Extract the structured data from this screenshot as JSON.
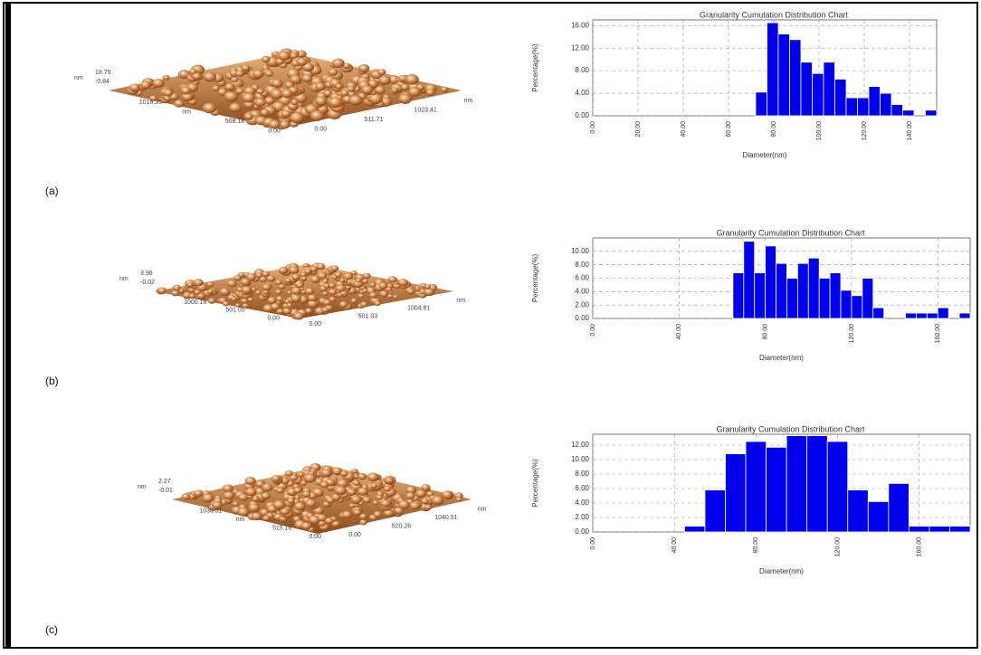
{
  "panels": [
    {
      "label": "(a)",
      "afm_labels": [
        "18.79",
        "nm",
        "-0.84",
        "1016.36",
        "nm",
        "508.18",
        "0.00",
        "0.00",
        "511.71",
        "1023.41",
        "nm"
      ]
    },
    {
      "label": "(b)",
      "afm_labels": [
        "3.96",
        "nm",
        "-0.02",
        "1000.16",
        "501.05",
        "0.00",
        "0.00",
        "501.03",
        "1004.61",
        "nm"
      ]
    },
    {
      "label": "(c)",
      "afm_labels": [
        "2.27",
        "nm",
        "-0.01",
        "1030.31",
        "nm",
        "515.16",
        "0.00",
        "0.00",
        "520.26",
        "1040.51",
        "nm"
      ]
    }
  ],
  "chart_data": [
    {
      "type": "histogram",
      "title": "Granularity Cumulation Distribution  Chart",
      "x_label": "Diameter(nm)",
      "y_label": "Percentage(%)",
      "color": "#0000ee",
      "grid": true,
      "bins": [
        72,
        77,
        82,
        87,
        92,
        97,
        102,
        107,
        112,
        117,
        122,
        127,
        132,
        137,
        142,
        147,
        152
      ],
      "values": [
        4.2,
        16.5,
        14.5,
        13.5,
        9.5,
        7.5,
        9.5,
        6.5,
        3.2,
        3.2,
        5.2,
        4.0,
        2.0,
        1.0,
        0,
        1.0
      ],
      "xlim": [
        0,
        152
      ],
      "ylim": [
        0,
        17
      ],
      "xticks": [
        {
          "value": 0,
          "label": "0.00"
        },
        {
          "value": 20,
          "label": "20.00"
        },
        {
          "value": 40,
          "label": "40.00"
        },
        {
          "value": 60,
          "label": "60.00"
        },
        {
          "value": 80,
          "label": "80.00"
        },
        {
          "value": 100,
          "label": "100.00"
        },
        {
          "value": 120,
          "label": "120.00"
        },
        {
          "value": 140,
          "label": "140.00"
        }
      ],
      "yticks": [
        {
          "value": 0,
          "label": "0.00"
        },
        {
          "value": 4,
          "label": "4.00"
        },
        {
          "value": 8,
          "label": "8.00"
        },
        {
          "value": 12,
          "label": "12.00"
        },
        {
          "value": 16,
          "label": "16.00"
        }
      ]
    },
    {
      "type": "histogram",
      "title": "Granularity Cumulation Distribution  Chart",
      "x_label": "Diameter(nm)",
      "y_label": "Percentage(%)",
      "color": "#0000ee",
      "grid": true,
      "bins": [
        65,
        70,
        75,
        80,
        85,
        90,
        95,
        100,
        105,
        110,
        115,
        120,
        125,
        130,
        135,
        140,
        145,
        150,
        155,
        160,
        165,
        170,
        175
      ],
      "values": [
        6.8,
        11.5,
        6.8,
        10.8,
        8.2,
        6.0,
        8.2,
        9.0,
        6.0,
        6.8,
        4.2,
        3.4,
        6.0,
        1.6,
        0,
        0,
        0.8,
        0.8,
        0.8,
        1.6,
        0,
        0.8
      ],
      "xlim": [
        0,
        175
      ],
      "ylim": [
        0,
        12
      ],
      "xticks": [
        {
          "value": 0,
          "label": "0.00"
        },
        {
          "value": 40,
          "label": "40.00"
        },
        {
          "value": 80,
          "label": "80.00"
        },
        {
          "value": 120,
          "label": "120.00"
        },
        {
          "value": 160,
          "label": "160.00"
        }
      ],
      "yticks": [
        {
          "value": 0,
          "label": "0.00"
        },
        {
          "value": 2,
          "label": "2.00"
        },
        {
          "value": 4,
          "label": "4.00"
        },
        {
          "value": 6,
          "label": "6.00"
        },
        {
          "value": 8,
          "label": "8.00"
        },
        {
          "value": 10,
          "label": "10.00"
        }
      ]
    },
    {
      "type": "histogram",
      "title": "Granularity Cumulation Distribution  Chart",
      "x_label": "Diameter(nm)",
      "y_label": "Percentage(%)",
      "color": "#0000ee",
      "grid": true,
      "bins": [
        45,
        55,
        65,
        75,
        85,
        95,
        105,
        115,
        125,
        135,
        145,
        155,
        165,
        175,
        185
      ],
      "values": [
        0.8,
        5.8,
        10.8,
        12.5,
        11.7,
        13.3,
        13.3,
        12.5,
        5.8,
        4.2,
        6.7,
        0.8,
        0.8,
        0.8
      ],
      "xlim": [
        0,
        185
      ],
      "ylim": [
        0,
        13.5
      ],
      "xticks": [
        {
          "value": 0,
          "label": "0.00"
        },
        {
          "value": 40,
          "label": "40.00"
        },
        {
          "value": 80,
          "label": "80.00"
        },
        {
          "value": 120,
          "label": "120.00"
        },
        {
          "value": 160,
          "label": "160.00"
        }
      ],
      "yticks": [
        {
          "value": 0,
          "label": "0.00"
        },
        {
          "value": 2,
          "label": "2.00"
        },
        {
          "value": 4,
          "label": "4.00"
        },
        {
          "value": 6,
          "label": "6.00"
        },
        {
          "value": 8,
          "label": "8.00"
        },
        {
          "value": 10,
          "label": "10.00"
        },
        {
          "value": 12,
          "label": "12.00"
        }
      ]
    }
  ]
}
